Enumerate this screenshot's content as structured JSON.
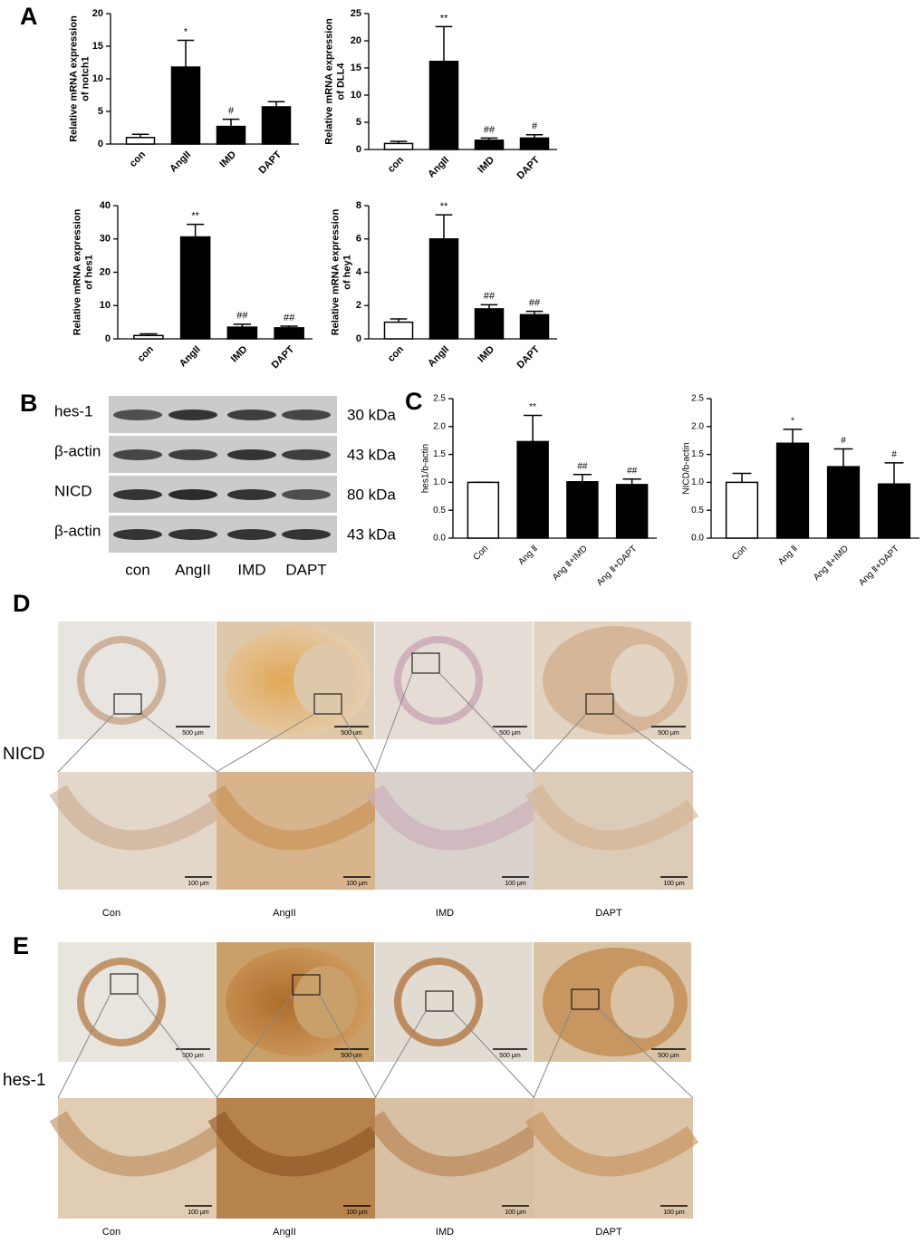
{
  "panel_labels": [
    "A",
    "B",
    "C",
    "D",
    "E"
  ],
  "chart_data": [
    {
      "type": "bar",
      "ylabel": [
        "Relative mRNA expression",
        "of notch1"
      ],
      "categories": [
        "con",
        "AngII",
        "IMD",
        "DAPT"
      ],
      "values": [
        1.0,
        11.8,
        2.7,
        5.7
      ],
      "errors": [
        0.5,
        4.1,
        1.1,
        0.8
      ],
      "annotations": [
        null,
        "*",
        "#",
        null
      ],
      "colors": [
        "#ffffff",
        "#000000",
        "#000000",
        "#000000"
      ],
      "ylim": [
        0,
        20
      ],
      "yticks": [
        0,
        5,
        10,
        15,
        20
      ]
    },
    {
      "type": "bar",
      "ylabel": [
        "Relative mRNA expression",
        "of DLL4"
      ],
      "categories": [
        "con",
        "AngII",
        "IMD",
        "DAPT"
      ],
      "values": [
        1.1,
        16.2,
        1.7,
        2.1
      ],
      "errors": [
        0.4,
        6.4,
        0.4,
        0.6
      ],
      "annotations": [
        null,
        "**",
        "##",
        "#"
      ],
      "colors": [
        "#ffffff",
        "#000000",
        "#000000",
        "#000000"
      ],
      "ylim": [
        0,
        25
      ],
      "yticks": [
        0,
        5,
        10,
        15,
        20,
        25
      ]
    },
    {
      "type": "bar",
      "ylabel": [
        "Relative mRNA expression",
        "of hes1"
      ],
      "categories": [
        "con",
        "AngII",
        "IMD",
        "DAPT"
      ],
      "values": [
        1.0,
        30.6,
        3.5,
        3.3
      ],
      "errors": [
        0.5,
        3.8,
        0.9,
        0.5
      ],
      "annotations": [
        null,
        "**",
        "##",
        "##"
      ],
      "colors": [
        "#ffffff",
        "#000000",
        "#000000",
        "#000000"
      ],
      "ylim": [
        0,
        40
      ],
      "yticks": [
        0,
        10,
        20,
        30,
        40
      ]
    },
    {
      "type": "bar",
      "ylabel": [
        "Relative mRNA expression",
        "of hey1"
      ],
      "categories": [
        "con",
        "AngII",
        "IMD",
        "DAPT"
      ],
      "values": [
        1.0,
        6.0,
        1.8,
        1.45
      ],
      "errors": [
        0.2,
        1.45,
        0.25,
        0.2
      ],
      "annotations": [
        null,
        "**",
        "##",
        "##"
      ],
      "colors": [
        "#ffffff",
        "#000000",
        "#000000",
        "#000000"
      ],
      "ylim": [
        0,
        8
      ],
      "yticks": [
        0,
        2,
        4,
        6,
        8
      ]
    },
    {
      "type": "bar",
      "ylabel": [
        "hes1/b-actin"
      ],
      "categories": [
        "Con",
        "Ang Ⅱ",
        "Ang Ⅱ+IMD",
        "Ang Ⅱ+DAPT"
      ],
      "values": [
        1.0,
        1.73,
        1.01,
        0.96
      ],
      "errors": [
        0.0,
        0.47,
        0.13,
        0.1
      ],
      "annotations": [
        null,
        "**",
        "##",
        "##"
      ],
      "colors": [
        "#ffffff",
        "#000000",
        "#000000",
        "#000000"
      ],
      "ylim": [
        0,
        2.5
      ],
      "yticks": [
        {
          "value": 0,
          "label": "0.0"
        },
        0.5,
        {
          "value": 1,
          "label": "1.0"
        },
        1.5,
        {
          "value": 2,
          "label": "2.0"
        },
        2.5
      ]
    },
    {
      "type": "bar",
      "ylabel": [
        "NICD/b-actin"
      ],
      "categories": [
        "Con",
        "Ang Ⅱ",
        "Ang Ⅱ+IMD",
        "Ang Ⅱ+DAPT"
      ],
      "values": [
        1.0,
        1.7,
        1.28,
        0.97
      ],
      "errors": [
        0.16,
        0.25,
        0.32,
        0.38
      ],
      "annotations": [
        null,
        "*",
        "#",
        "#"
      ],
      "colors": [
        "#ffffff",
        "#000000",
        "#000000",
        "#000000"
      ],
      "ylim": [
        0,
        2.5
      ],
      "yticks": [
        {
          "value": 0,
          "label": "0.0"
        },
        0.5,
        {
          "value": 1,
          "label": "1.0"
        },
        1.5,
        {
          "value": 2,
          "label": "2.0"
        },
        2.5
      ]
    }
  ],
  "western_blot": {
    "rows": [
      {
        "label": "hes-1",
        "size": "30 kDa"
      },
      {
        "label": "β-actin",
        "size": "43 kDa"
      },
      {
        "label": "NICD",
        "size": "80 kDa"
      },
      {
        "label": "β-actin",
        "size": "43 kDa"
      }
    ],
    "lanes": [
      "con",
      "AngII",
      "IMD",
      "DAPT"
    ]
  },
  "histology": [
    {
      "stain": "NICD",
      "groups": [
        "Con",
        "AngII",
        "IMD",
        "DAPT"
      ]
    },
    {
      "stain": "hes-1",
      "groups": [
        "Con",
        "AngII",
        "IMD",
        "DAPT"
      ]
    }
  ],
  "scale_bars": [
    "500 μm",
    "100 μm"
  ]
}
